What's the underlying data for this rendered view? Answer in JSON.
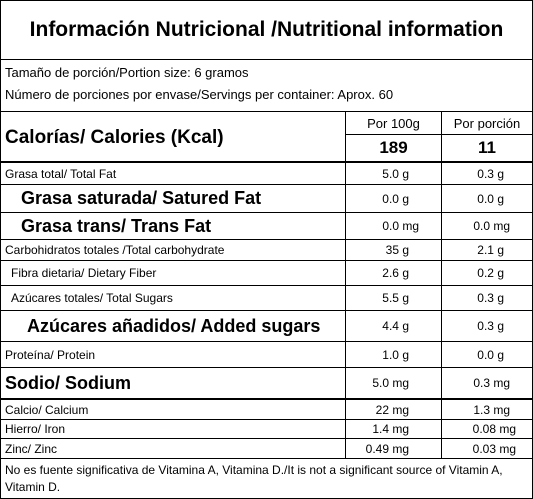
{
  "title": "Información Nutricional /Nutritional information",
  "serving": {
    "size": "Tamaño de porción/Portion size: 6 gramos",
    "per_container": "Número de porciones por envase/Servings per container: Aprox. 60"
  },
  "calories": {
    "label": "Calorías/ Calories (Kcal)",
    "col1_header": "Por 100g",
    "col2_header": "Por porción",
    "col1_value": "189",
    "col2_value": "11"
  },
  "rows": [
    {
      "label": "Grasa total/ Total Fat",
      "v1": "5.0 g",
      "v2": "0.3 g"
    },
    {
      "label": "Grasa saturada/ Satured Fat",
      "v1": "0.0 g",
      "v2": "0.0 g"
    },
    {
      "label": "Grasa trans/ Trans Fat",
      "v1": "0.0 mg",
      "v2": "0.0 mg"
    },
    {
      "label": "Carbohidratos totales /Total carbohydrate",
      "v1": "35 g",
      "v2": "2.1 g"
    },
    {
      "label": "Fibra dietaria/ Dietary Fiber",
      "v1": "2.6 g",
      "v2": "0.2 g"
    },
    {
      "label": "Azúcares totales/ Total Sugars",
      "v1": "5.5 g",
      "v2": "0.3 g"
    },
    {
      "label": "Azúcares añadidos/ Added sugars",
      "v1": "4.4 g",
      "v2": "0.3 g"
    },
    {
      "label": "Proteína/ Protein",
      "v1": "1.0 g",
      "v2": "0.0 g"
    },
    {
      "label": "Sodio/ Sodium",
      "v1": "5.0 mg",
      "v2": "0.3 mg"
    },
    {
      "label": "Calcio/ Calcium",
      "v1": "22 mg",
      "v2": "1.3 mg"
    },
    {
      "label": "Hierro/ Iron",
      "v1": "1.4 mg",
      "v2": "0.08 mg"
    },
    {
      "label": "Zinc/ Zinc",
      "v1": "0.49 mg",
      "v2": "0.03 mg"
    }
  ],
  "footnote": "No es fuente significativa de Vitamina A, Vitamina D./It is not a significant source of Vitamin A, Vitamin D."
}
